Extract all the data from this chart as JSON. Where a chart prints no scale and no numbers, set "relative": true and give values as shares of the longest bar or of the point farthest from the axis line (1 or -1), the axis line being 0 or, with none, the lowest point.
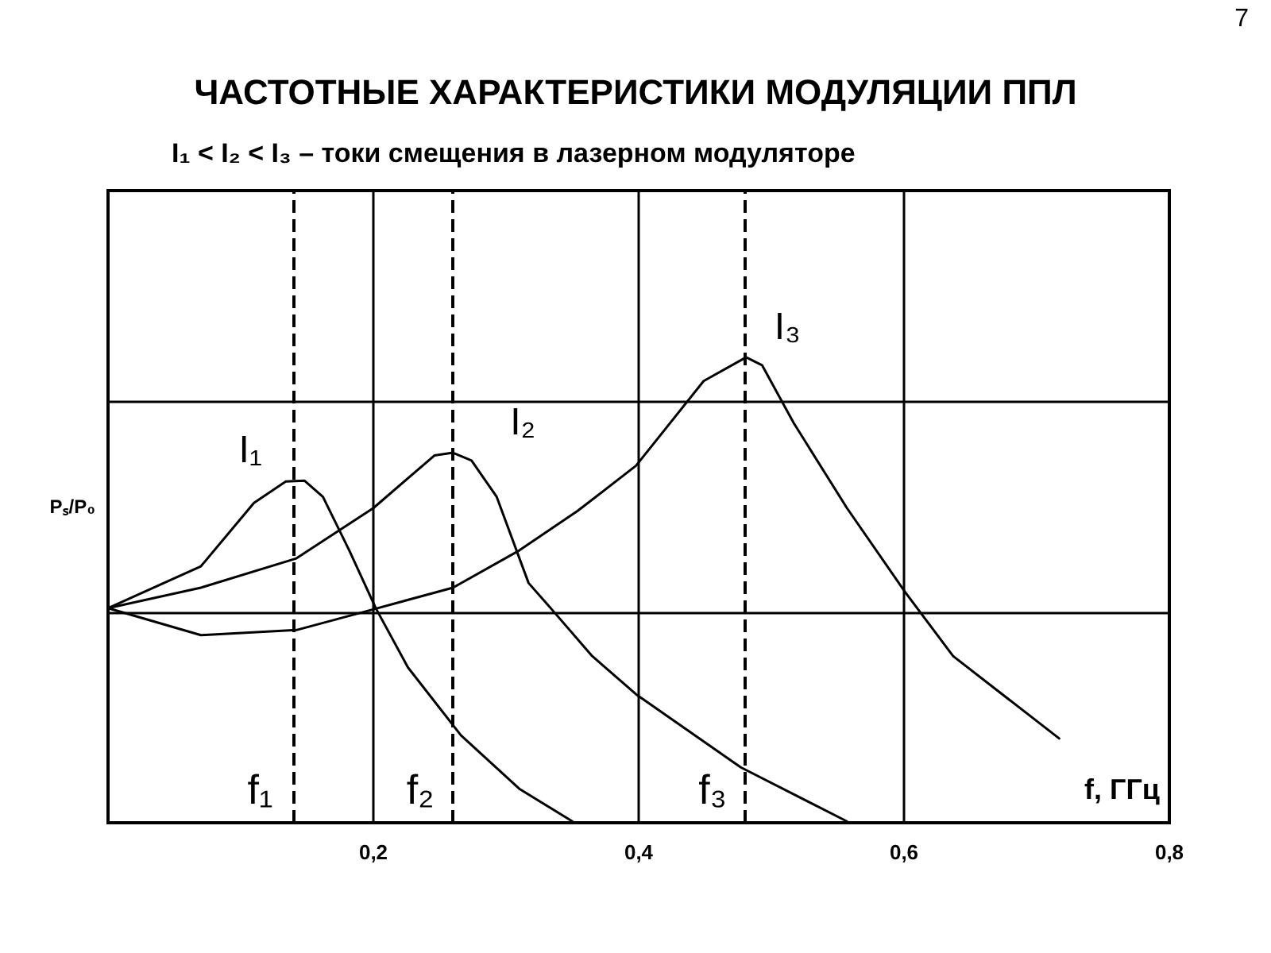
{
  "chart_data": {
    "type": "line",
    "title": "ЧАСТОТНЫЕ ХАРАКТЕРИСТИКИ МОДУЛЯЦИИ ППЛ",
    "subtitle": "I₁ < I₂ < I₃ – токи смещения в лазерном модуляторе",
    "xlabel": "f, ГГц",
    "ylabel": "Pₛ/P₀",
    "annotations": [
      "7"
    ],
    "relative": true,
    "legend": false,
    "grid": true,
    "marker": "none",
    "line_style": "solid",
    "xlim": [
      0,
      0.8
    ],
    "xticks": [
      {
        "value": 0.2,
        "label": "0,2"
      },
      {
        "value": 0.4,
        "label": "0,4"
      },
      {
        "value": 0.6,
        "label": "0,6"
      },
      {
        "value": 0.8,
        "label": "0,8"
      }
    ],
    "series": [
      {
        "name": "I₁",
        "color": "#000000",
        "x": [
          0,
          0.07,
          0.11,
          0.134,
          0.148,
          0.162,
          0.182,
          0.202,
          0.226,
          0.266,
          0.31,
          0.35
        ],
        "values": [
          0.461,
          0.551,
          0.687,
          0.733,
          0.735,
          0.7,
          0.584,
          0.46,
          0.334,
          0.188,
          0.073,
          0.003
        ]
      },
      {
        "name": "I₂",
        "color": "#000000",
        "x": [
          0,
          0.07,
          0.142,
          0.2,
          0.246,
          0.26,
          0.274,
          0.293,
          0.317,
          0.334,
          0.365,
          0.398,
          0.477,
          0.557
        ],
        "values": [
          0.461,
          0.505,
          0.568,
          0.676,
          0.789,
          0.795,
          0.778,
          0.7,
          0.515,
          0.46,
          0.358,
          0.276,
          0.119,
          0.003
        ]
      },
      {
        "name": "I₃",
        "color": "#000000",
        "x": [
          0,
          0.07,
          0.142,
          0.202,
          0.26,
          0.31,
          0.354,
          0.398,
          0.449,
          0.481,
          0.493,
          0.517,
          0.557,
          0.601,
          0.637,
          0.717
        ],
        "values": [
          0.461,
          0.403,
          0.414,
          0.46,
          0.505,
          0.585,
          0.67,
          0.767,
          0.949,
          1.0,
          0.983,
          0.858,
          0.676,
          0.495,
          0.358,
          0.181
        ]
      }
    ],
    "ref_lines": [
      {
        "axis": "x",
        "value": 0.141,
        "label": "f₁"
      },
      {
        "axis": "x",
        "value": 0.261,
        "label": "f₂"
      },
      {
        "axis": "x",
        "value": 0.481,
        "label": "f₃"
      }
    ]
  }
}
